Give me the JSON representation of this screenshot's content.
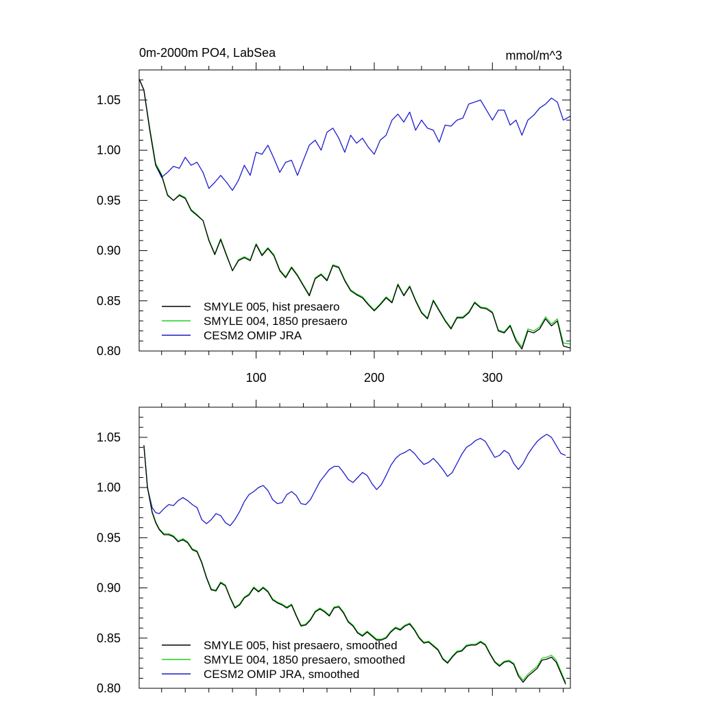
{
  "colors": {
    "black": "#000000",
    "green": "#22cc22",
    "blue": "#1a1acc"
  },
  "chart_data": [
    {
      "type": "line",
      "title": "0m-2000m PO4, LabSea",
      "units": "mmol/m^3",
      "xlim": [
        1,
        366
      ],
      "ylim": [
        0.8,
        1.08
      ],
      "xticks": [
        100,
        200,
        300
      ],
      "xtick_labels": [
        "100",
        "200",
        "300"
      ],
      "yticks": [
        0.8,
        0.85,
        0.9,
        0.95,
        1.0,
        1.05
      ],
      "ytick_labels": [
        "0.80",
        "0.85",
        "0.90",
        "0.95",
        "1.00",
        "1.05"
      ],
      "legend_position": "bottom-left",
      "x": [
        1,
        5,
        10,
        15,
        20,
        25,
        30,
        35,
        40,
        45,
        50,
        55,
        60,
        65,
        70,
        75,
        80,
        85,
        90,
        95,
        100,
        105,
        110,
        115,
        120,
        125,
        130,
        135,
        140,
        145,
        150,
        155,
        160,
        165,
        170,
        175,
        180,
        185,
        190,
        195,
        200,
        205,
        210,
        215,
        220,
        225,
        230,
        235,
        240,
        245,
        250,
        255,
        260,
        265,
        270,
        275,
        280,
        285,
        290,
        295,
        300,
        305,
        310,
        315,
        320,
        325,
        330,
        335,
        340,
        345,
        350,
        355,
        360,
        366
      ],
      "series": [
        {
          "name": "SMYLE 005, hist presaero",
          "color": "#000000",
          "values": [
            1.071,
            1.06,
            1.02,
            0.985,
            0.975,
            0.955,
            0.95,
            0.955,
            0.952,
            0.94,
            0.935,
            0.93,
            0.91,
            0.896,
            0.911,
            0.895,
            0.88,
            0.89,
            0.893,
            0.89,
            0.906,
            0.895,
            0.902,
            0.895,
            0.88,
            0.873,
            0.883,
            0.875,
            0.865,
            0.855,
            0.872,
            0.876,
            0.87,
            0.885,
            0.883,
            0.87,
            0.86,
            0.856,
            0.853,
            0.846,
            0.84,
            0.846,
            0.853,
            0.848,
            0.866,
            0.855,
            0.864,
            0.85,
            0.838,
            0.832,
            0.85,
            0.84,
            0.83,
            0.822,
            0.833,
            0.833,
            0.838,
            0.848,
            0.843,
            0.842,
            0.838,
            0.82,
            0.818,
            0.825,
            0.81,
            0.802,
            0.82,
            0.818,
            0.822,
            0.832,
            0.825,
            0.83,
            0.805,
            0.803
          ]
        },
        {
          "name": "SMYLE 004, 1850 presaero",
          "color": "#22cc22",
          "values": [
            1.071,
            1.06,
            1.022,
            0.987,
            0.976,
            0.956,
            0.95,
            0.956,
            0.953,
            0.941,
            0.936,
            0.93,
            0.911,
            0.897,
            0.912,
            0.896,
            0.88,
            0.891,
            0.894,
            0.891,
            0.907,
            0.896,
            0.903,
            0.896,
            0.881,
            0.874,
            0.884,
            0.876,
            0.866,
            0.856,
            0.873,
            0.877,
            0.871,
            0.886,
            0.884,
            0.871,
            0.861,
            0.857,
            0.854,
            0.847,
            0.841,
            0.847,
            0.854,
            0.849,
            0.867,
            0.856,
            0.865,
            0.851,
            0.839,
            0.833,
            0.851,
            0.841,
            0.831,
            0.823,
            0.834,
            0.834,
            0.839,
            0.849,
            0.844,
            0.843,
            0.839,
            0.821,
            0.819,
            0.826,
            0.812,
            0.804,
            0.822,
            0.82,
            0.824,
            0.834,
            0.827,
            0.832,
            0.808,
            0.807
          ]
        },
        {
          "name": "CESM2 OMIP JRA",
          "color": "#1a1acc",
          "values": [
            1.071,
            1.06,
            1.02,
            0.985,
            0.973,
            0.978,
            0.984,
            0.982,
            0.993,
            0.985,
            0.988,
            0.978,
            0.962,
            0.968,
            0.975,
            0.968,
            0.96,
            0.97,
            0.985,
            0.975,
            0.998,
            0.996,
            1.005,
            0.992,
            0.978,
            0.988,
            0.99,
            0.975,
            0.99,
            1.005,
            1.01,
            1.0,
            1.018,
            1.022,
            1.012,
            0.998,
            1.015,
            1.007,
            1.012,
            1.003,
            0.996,
            1.01,
            1.015,
            1.03,
            1.036,
            1.028,
            1.038,
            1.02,
            1.03,
            1.022,
            1.02,
            1.008,
            1.025,
            1.024,
            1.03,
            1.032,
            1.046,
            1.048,
            1.05,
            1.04,
            1.03,
            1.04,
            1.04,
            1.025,
            1.03,
            1.015,
            1.03,
            1.035,
            1.042,
            1.046,
            1.052,
            1.048,
            1.03,
            1.034
          ]
        }
      ]
    },
    {
      "type": "line",
      "title": "",
      "units": "",
      "xlim": [
        1,
        366
      ],
      "ylim": [
        0.8,
        1.08
      ],
      "xticks": [
        100,
        200,
        300
      ],
      "xtick_labels": [],
      "yticks": [
        0.8,
        0.85,
        0.9,
        0.95,
        1.0,
        1.05
      ],
      "ytick_labels": [
        "0.80",
        "0.85",
        "0.90",
        "0.95",
        "1.00",
        "1.05"
      ],
      "legend_position": "bottom-left",
      "x": [
        5,
        8,
        12,
        15,
        18,
        22,
        26,
        30,
        34,
        38,
        42,
        46,
        50,
        54,
        58,
        62,
        66,
        70,
        74,
        78,
        82,
        86,
        90,
        94,
        98,
        102,
        106,
        110,
        114,
        118,
        122,
        126,
        130,
        134,
        138,
        142,
        146,
        150,
        154,
        158,
        162,
        166,
        170,
        174,
        178,
        182,
        186,
        190,
        194,
        198,
        202,
        206,
        210,
        214,
        218,
        222,
        226,
        230,
        234,
        238,
        242,
        246,
        250,
        254,
        258,
        262,
        266,
        270,
        274,
        278,
        282,
        286,
        290,
        294,
        298,
        302,
        306,
        310,
        314,
        318,
        322,
        326,
        330,
        334,
        338,
        342,
        346,
        350,
        354,
        358,
        362
      ],
      "series": [
        {
          "name": "SMYLE 005, hist presaero, smoothed",
          "color": "#000000",
          "values": [
            1.042,
            1.0,
            0.975,
            0.965,
            0.958,
            0.953,
            0.953,
            0.951,
            0.946,
            0.948,
            0.945,
            0.938,
            0.936,
            0.925,
            0.91,
            0.898,
            0.897,
            0.905,
            0.902,
            0.89,
            0.88,
            0.883,
            0.89,
            0.893,
            0.9,
            0.896,
            0.9,
            0.896,
            0.888,
            0.885,
            0.883,
            0.88,
            0.883,
            0.872,
            0.862,
            0.863,
            0.868,
            0.876,
            0.879,
            0.876,
            0.872,
            0.88,
            0.881,
            0.875,
            0.866,
            0.862,
            0.855,
            0.852,
            0.856,
            0.852,
            0.848,
            0.848,
            0.85,
            0.856,
            0.86,
            0.858,
            0.862,
            0.864,
            0.858,
            0.85,
            0.845,
            0.846,
            0.842,
            0.838,
            0.829,
            0.825,
            0.831,
            0.836,
            0.837,
            0.842,
            0.843,
            0.843,
            0.846,
            0.843,
            0.834,
            0.826,
            0.822,
            0.826,
            0.827,
            0.824,
            0.812,
            0.806,
            0.812,
            0.816,
            0.82,
            0.828,
            0.829,
            0.831,
            0.826,
            0.815,
            0.804
          ]
        },
        {
          "name": "SMYLE 004, 1850 presaero, smoothed",
          "color": "#22cc22",
          "values": [
            1.042,
            1.001,
            0.976,
            0.966,
            0.959,
            0.954,
            0.954,
            0.952,
            0.947,
            0.949,
            0.946,
            0.939,
            0.937,
            0.926,
            0.911,
            0.899,
            0.898,
            0.906,
            0.903,
            0.891,
            0.881,
            0.884,
            0.891,
            0.894,
            0.901,
            0.897,
            0.901,
            0.897,
            0.889,
            0.886,
            0.884,
            0.881,
            0.884,
            0.873,
            0.863,
            0.864,
            0.869,
            0.877,
            0.88,
            0.877,
            0.873,
            0.881,
            0.882,
            0.876,
            0.867,
            0.863,
            0.856,
            0.853,
            0.857,
            0.853,
            0.849,
            0.849,
            0.851,
            0.857,
            0.861,
            0.859,
            0.863,
            0.865,
            0.859,
            0.851,
            0.846,
            0.847,
            0.843,
            0.839,
            0.83,
            0.826,
            0.832,
            0.837,
            0.838,
            0.843,
            0.844,
            0.844,
            0.847,
            0.844,
            0.835,
            0.827,
            0.823,
            0.827,
            0.828,
            0.825,
            0.814,
            0.808,
            0.814,
            0.818,
            0.822,
            0.83,
            0.831,
            0.833,
            0.828,
            0.817,
            0.806
          ]
        },
        {
          "name": "CESM2 OMIP JRA, smoothed",
          "color": "#1a1acc",
          "values": [
            1.042,
            1.0,
            0.98,
            0.975,
            0.974,
            0.979,
            0.983,
            0.982,
            0.987,
            0.99,
            0.987,
            0.983,
            0.98,
            0.968,
            0.964,
            0.968,
            0.974,
            0.972,
            0.965,
            0.962,
            0.968,
            0.976,
            0.986,
            0.993,
            0.996,
            1.0,
            1.002,
            0.997,
            0.988,
            0.984,
            0.985,
            0.993,
            0.996,
            0.992,
            0.984,
            0.983,
            0.988,
            0.997,
            1.006,
            1.012,
            1.018,
            1.021,
            1.021,
            1.015,
            1.008,
            1.005,
            1.01,
            1.015,
            1.012,
            1.004,
            0.998,
            1.003,
            1.012,
            1.022,
            1.029,
            1.033,
            1.035,
            1.038,
            1.034,
            1.028,
            1.023,
            1.025,
            1.029,
            1.024,
            1.018,
            1.011,
            1.015,
            1.024,
            1.033,
            1.04,
            1.043,
            1.047,
            1.049,
            1.046,
            1.038,
            1.03,
            1.032,
            1.037,
            1.034,
            1.024,
            1.018,
            1.024,
            1.033,
            1.04,
            1.046,
            1.05,
            1.053,
            1.05,
            1.042,
            1.034,
            1.032
          ]
        }
      ]
    }
  ]
}
